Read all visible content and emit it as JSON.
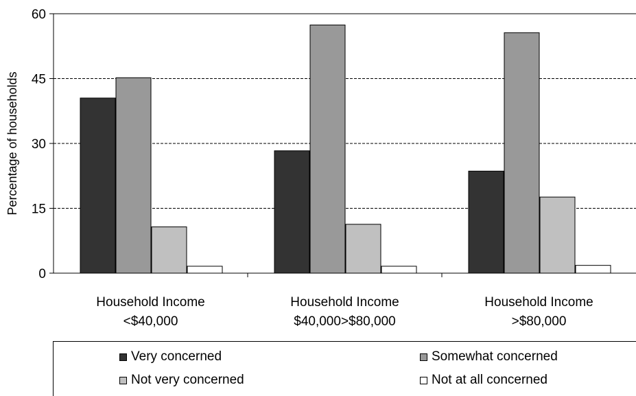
{
  "chart_data": {
    "type": "bar",
    "title": "",
    "xlabel": "",
    "ylabel": "Percentage of households",
    "ylim": [
      0,
      60
    ],
    "yticks": [
      "0",
      "15",
      "30",
      "45",
      "60"
    ],
    "grid": true,
    "legend_position": "bottom",
    "categories": [
      [
        "Household Income",
        "<$40,000"
      ],
      [
        "Household Income",
        "$40,000>$80,000"
      ],
      [
        "Household Income",
        ">$80,000"
      ]
    ],
    "series": [
      {
        "name": "Very concerned",
        "color": "#333333",
        "values": [
          40.5,
          28.3,
          23.6
        ]
      },
      {
        "name": "Somewhat concerned",
        "color": "#999999",
        "values": [
          45.2,
          57.4,
          55.6
        ]
      },
      {
        "name": "Not very concerned",
        "color": "#c0c0c0",
        "values": [
          10.7,
          11.3,
          17.6
        ]
      },
      {
        "name": "Not at all concerned",
        "color": "#ffffff",
        "values": [
          1.6,
          1.6,
          1.8
        ]
      }
    ]
  }
}
